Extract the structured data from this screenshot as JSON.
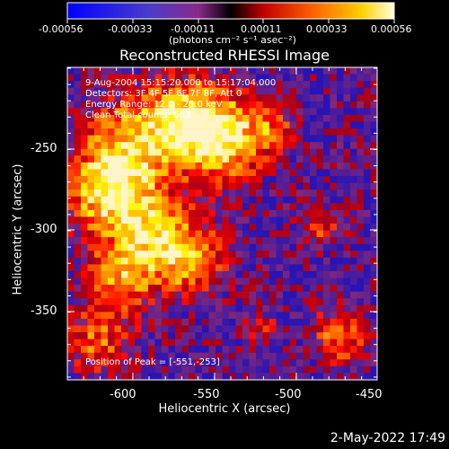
{
  "colorbar": {
    "tick_labels": [
      "-0.00056",
      "-0.00033",
      "-0.00011",
      "0.00011",
      "0.00033",
      "0.00056"
    ],
    "units": "(photons cm⁻² s⁻¹ asec⁻²)"
  },
  "title": "Reconstructed RHESSI Image",
  "annotations": [
    "9-Aug-2004 15:15:20.000 to 15:17:04.000",
    "Detectors: 3F 4F 5F 6F 7F 8F, Att 0",
    "Energy Range: 12.0 - 25.0 keV",
    "Clean    Total counts: 663"
  ],
  "peak": "Position of Peak = [-551,-253]",
  "axes": {
    "xlabel": "Heliocentric X (arcsec)",
    "ylabel": "Heliocentric Y (arcsec)",
    "xticks": [
      "-600",
      "-550",
      "-500",
      "-450"
    ],
    "yticks": [
      "-250",
      "-300",
      "-350"
    ]
  },
  "timestamp": "2-May-2022 17:49",
  "colors": {
    "background": "#000000",
    "low": "#2a1f6e",
    "high": "#ffff40"
  }
}
